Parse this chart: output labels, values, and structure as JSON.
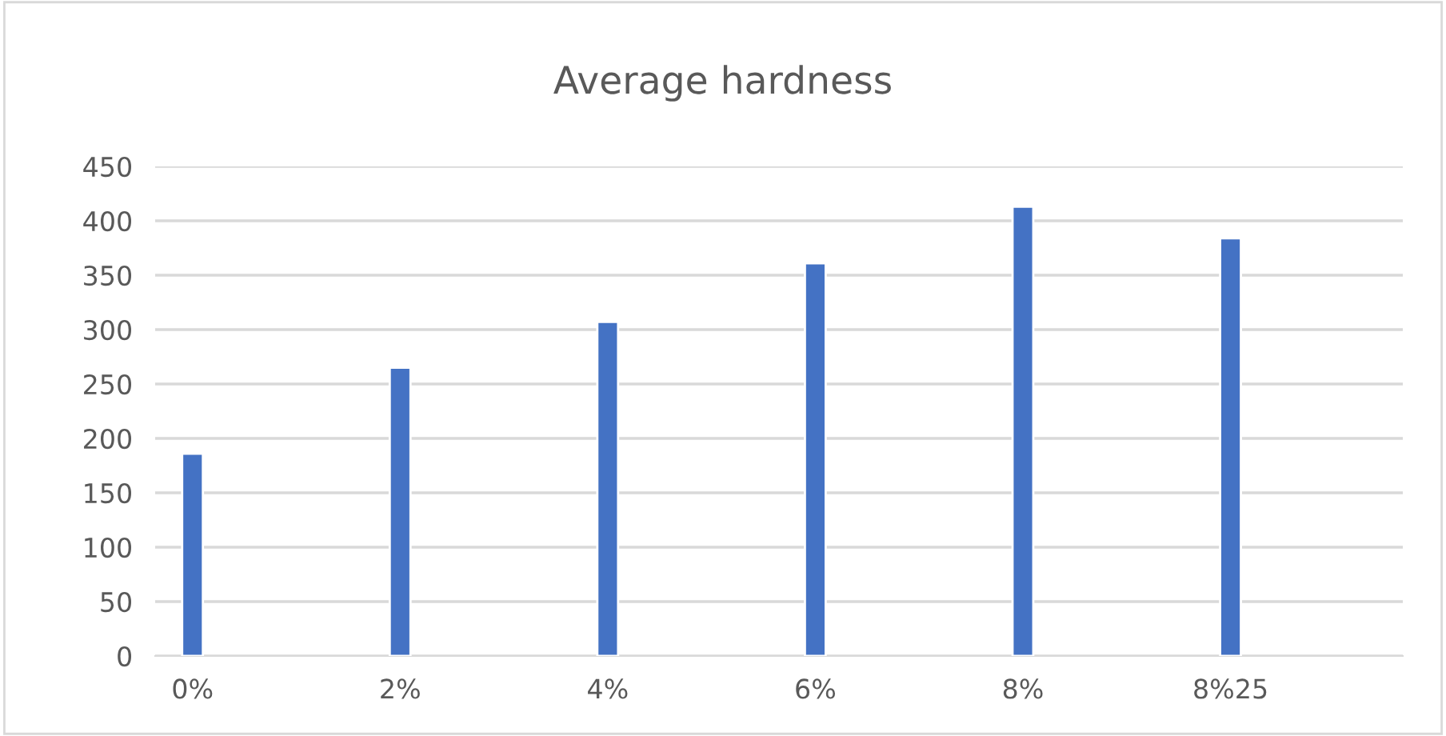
{
  "chart_data": {
    "type": "bar",
    "title": "Average hardness",
    "categories": [
      "0%",
      "2%",
      "4%",
      "6%",
      "8%",
      "8%25"
    ],
    "values": [
      186,
      265,
      307,
      361,
      413,
      384
    ],
    "color": "#4472c4",
    "ylim": [
      0,
      450
    ],
    "yticks": [
      0,
      50,
      100,
      150,
      200,
      250,
      300,
      350,
      400,
      450
    ],
    "grid": "y"
  }
}
